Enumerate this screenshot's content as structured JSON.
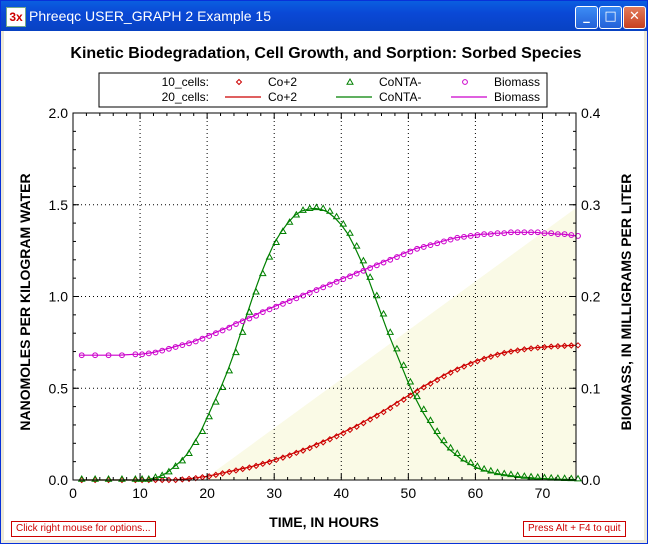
{
  "window": {
    "title": "Phreeqc USER_GRAPH 2 Example 15",
    "icon_label": "3x"
  },
  "status": {
    "left": "Click right mouse for options...",
    "right": "Press Alt + F4 to quit"
  },
  "colors": {
    "co": "#cc0000",
    "conta": "#008000",
    "biomass": "#cc00cc",
    "shade": "#fafae6"
  },
  "chart_data": {
    "type": "line",
    "title": "Kinetic Biodegradation, Cell Growth, and Sorption: Sorbed Species",
    "xlabel": "TIME, IN HOURS",
    "ylabel": "NANOMOLES PER KILOGRAM WATER",
    "y2label": "BIOMASS, IN MILLIGRAMS PER LITER",
    "xlim": [
      0,
      75
    ],
    "ylim": [
      0,
      2.0
    ],
    "y2lim": [
      0,
      0.4
    ],
    "x_ticks": [
      "0",
      "10",
      "20",
      "30",
      "40",
      "50",
      "60",
      "70"
    ],
    "y_ticks": [
      "0.0",
      "0.5",
      "1.0",
      "1.5",
      "2.0"
    ],
    "y2_ticks": [
      "0.0",
      "0.1",
      "0.2",
      "0.3",
      "0.4"
    ],
    "grid": true,
    "legend_position": "top-center",
    "legend": {
      "group1": "10_cells:",
      "group2": "20_cells:",
      "names": [
        "Co+2",
        "CoNTA-",
        "Biomass"
      ]
    },
    "curve_x": [
      1,
      3,
      5,
      7,
      9,
      10,
      11,
      12,
      13,
      14,
      15,
      16,
      17,
      18,
      19,
      20,
      21,
      22,
      23,
      24,
      25,
      26,
      27,
      28,
      29,
      30,
      31,
      32,
      33,
      34,
      35,
      36,
      37,
      38,
      39,
      40,
      41,
      42,
      43,
      44,
      45,
      46,
      47,
      48,
      49,
      50,
      51,
      52,
      53,
      54,
      55,
      56,
      57,
      58,
      59,
      60,
      61,
      62,
      63,
      64,
      65,
      66,
      67,
      68,
      69,
      70,
      71,
      72,
      73,
      74,
      75
    ],
    "series": [
      {
        "name": "Co+2",
        "axis": "left",
        "marker": "diamond",
        "values": [
          0,
          0,
          0,
          0,
          0,
          0,
          0,
          0,
          0,
          0,
          0,
          0.003,
          0.006,
          0.01,
          0.015,
          0.02,
          0.028,
          0.036,
          0.044,
          0.052,
          0.06,
          0.068,
          0.077,
          0.088,
          0.098,
          0.11,
          0.122,
          0.134,
          0.148,
          0.16,
          0.174,
          0.19,
          0.205,
          0.222,
          0.238,
          0.255,
          0.273,
          0.29,
          0.31,
          0.33,
          0.35,
          0.37,
          0.392,
          0.415,
          0.438,
          0.46,
          0.482,
          0.505,
          0.525,
          0.545,
          0.565,
          0.585,
          0.602,
          0.618,
          0.633,
          0.647,
          0.66,
          0.672,
          0.683,
          0.692,
          0.7,
          0.706,
          0.712,
          0.717,
          0.721,
          0.724,
          0.727,
          0.729,
          0.731,
          0.733,
          0.734
        ]
      },
      {
        "name": "CoNTA-",
        "axis": "left",
        "marker": "triangle",
        "values": [
          0,
          0,
          0,
          0,
          0,
          0,
          0,
          0.01,
          0.02,
          0.04,
          0.07,
          0.1,
          0.14,
          0.2,
          0.26,
          0.34,
          0.42,
          0.5,
          0.59,
          0.69,
          0.8,
          0.91,
          1.02,
          1.12,
          1.21,
          1.29,
          1.35,
          1.4,
          1.44,
          1.465,
          1.475,
          1.48,
          1.475,
          1.46,
          1.43,
          1.39,
          1.34,
          1.27,
          1.19,
          1.1,
          1.0,
          0.9,
          0.8,
          0.71,
          0.62,
          0.53,
          0.45,
          0.38,
          0.32,
          0.26,
          0.21,
          0.17,
          0.14,
          0.11,
          0.09,
          0.07,
          0.055,
          0.045,
          0.036,
          0.03,
          0.025,
          0.02,
          0.016,
          0.013,
          0.01,
          0.008,
          0.006,
          0.005,
          0.004,
          0.003,
          0.002
        ]
      },
      {
        "name": "Biomass",
        "axis": "right",
        "marker": "circle",
        "values": [
          0.136,
          0.136,
          0.136,
          0.136,
          0.137,
          0.137,
          0.138,
          0.139,
          0.141,
          0.143,
          0.145,
          0.147,
          0.149,
          0.151,
          0.154,
          0.157,
          0.16,
          0.163,
          0.166,
          0.17,
          0.173,
          0.176,
          0.179,
          0.183,
          0.186,
          0.189,
          0.192,
          0.195,
          0.198,
          0.201,
          0.204,
          0.207,
          0.21,
          0.213,
          0.216,
          0.219,
          0.222,
          0.225,
          0.228,
          0.231,
          0.234,
          0.237,
          0.24,
          0.243,
          0.246,
          0.249,
          0.252,
          0.254,
          0.256,
          0.258,
          0.26,
          0.262,
          0.264,
          0.265,
          0.266,
          0.267,
          0.268,
          0.268,
          0.269,
          0.269,
          0.27,
          0.27,
          0.27,
          0.27,
          0.27,
          0.269,
          0.269,
          0.268,
          0.268,
          0.267,
          0.266
        ]
      }
    ]
  }
}
